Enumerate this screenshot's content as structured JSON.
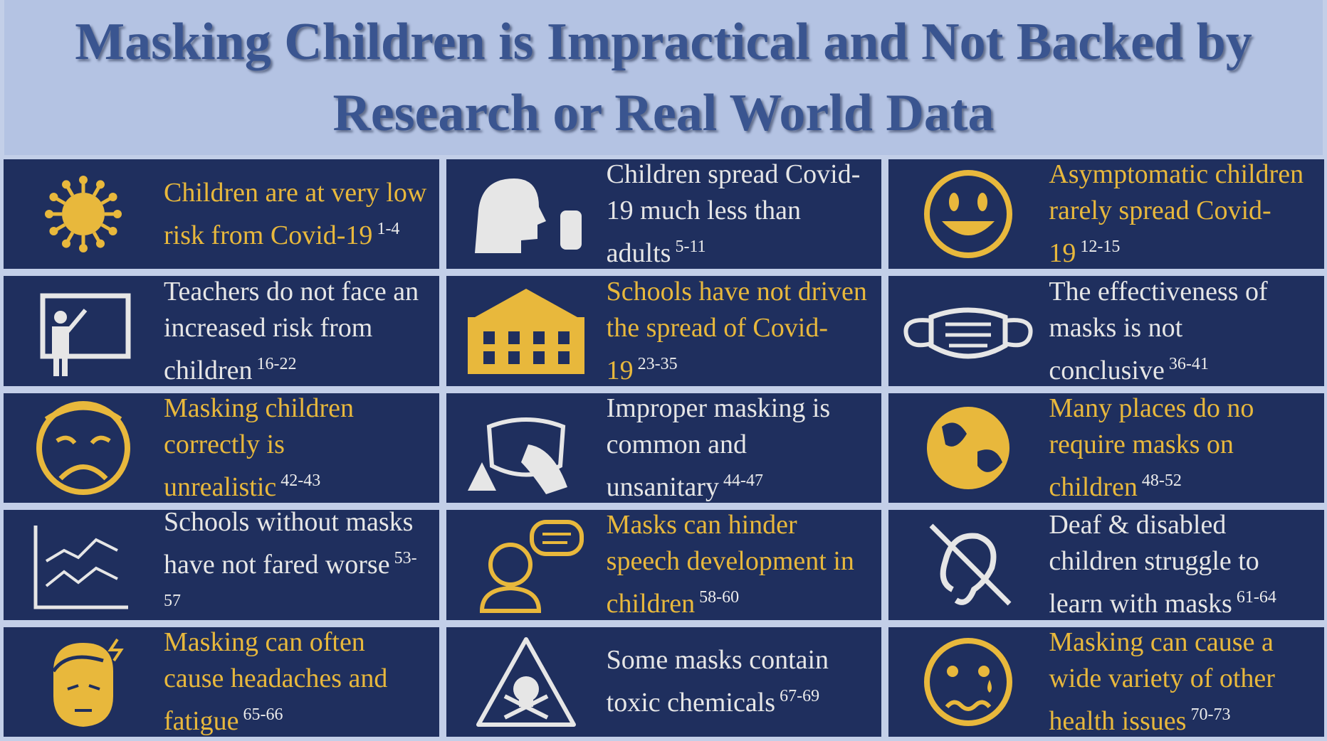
{
  "header": {
    "title": "Masking Children is Impractical and Not Backed by Research or Real World Data"
  },
  "grid": {
    "rows": [
      [
        {
          "text": "Children are at very low risk from Covid-19",
          "refs": "1-4",
          "color": "#e8b83c"
        },
        {
          "text": "Children spread Covid-19 much less than adults",
          "refs": "5-11",
          "color": "#e6e6e6"
        },
        {
          "text": "Asymptomatic children rarely spread Covid-19",
          "refs": "12-15",
          "color": "#e8b83c"
        }
      ],
      [
        {
          "text": "Teachers do not face an increased risk from children",
          "refs": "16-22",
          "color": "#e6e6e6"
        },
        {
          "text": "Schools have not driven the spread of Covid-19",
          "refs": "23-35",
          "color": "#e8b83c"
        },
        {
          "text": "The effectiveness of masks is not conclusive",
          "refs": "36-41",
          "color": "#e6e6e6"
        }
      ],
      [
        {
          "text": "Masking children correctly is unrealistic",
          "refs": "42-43",
          "color": "#e8b83c"
        },
        {
          "text": "Improper masking is common and unsanitary",
          "refs": "44-47",
          "color": "#e6e6e6"
        },
        {
          "text": "Many places do no require masks on children",
          "refs": "48-52",
          "color": "#e8b83c"
        }
      ],
      [
        {
          "text": "Schools without masks have not fared worse",
          "refs": "53-57",
          "color": "#e6e6e6"
        },
        {
          "text": "Masks can hinder speech development in children",
          "refs": "58-60",
          "color": "#e8b83c"
        },
        {
          "text": "Deaf & disabled children struggle to learn with masks",
          "refs": "61-64",
          "color": "#e6e6e6"
        }
      ],
      [
        {
          "text": "Masking can often cause headaches and fatigue",
          "refs": "65-66",
          "color": "#e8b83c"
        },
        {
          "text": "Some masks contain toxic chemicals",
          "refs": "67-69",
          "color": "#e6e6e6"
        },
        {
          "text": "Masking can cause a wide variety of other health issues",
          "refs": "70-73",
          "color": "#e8b83c"
        }
      ]
    ]
  }
}
